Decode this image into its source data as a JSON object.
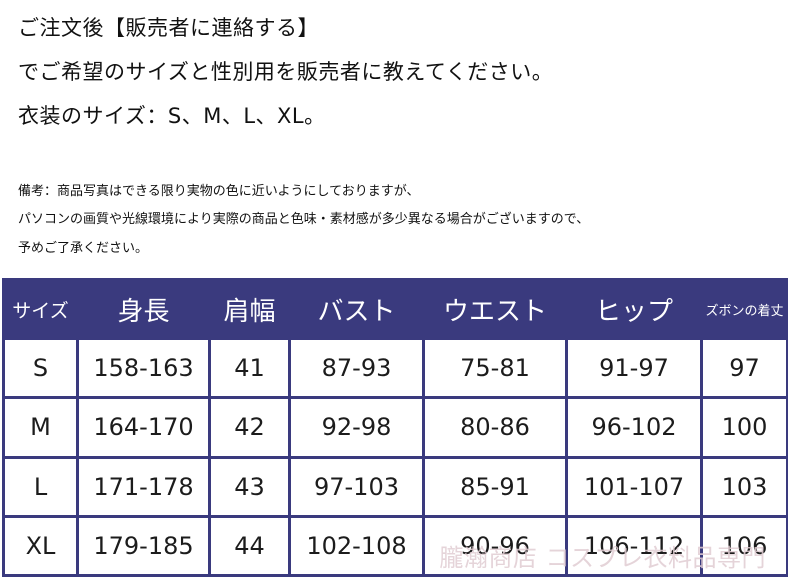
{
  "instructions": {
    "line1": "ご注文後【販売者に連絡する】",
    "line2": "でご希望のサイズと性別用を販売者に教えてください。",
    "line3": "衣装のサイズ：S、M、L、XL。"
  },
  "note": {
    "line1": "備考：商品写真はできる限り実物の色に近いようにしておりますが、",
    "line2": "パソコンの画質や光線環境により実際の商品と色味・素材感が多少異なる場合がございますので、",
    "line3": "予めご了承ください。"
  },
  "size_table": {
    "headers": [
      "サイズ",
      "身長",
      "肩幅",
      "バスト",
      "ウエスト",
      "ヒップ",
      "ズボンの着丈"
    ],
    "rows": [
      [
        "S",
        "158-163",
        "41",
        "87-93",
        "75-81",
        "91-97",
        "97"
      ],
      [
        "M",
        "164-170",
        "42",
        "92-98",
        "80-86",
        "96-102",
        "100"
      ],
      [
        "L",
        "171-178",
        "43",
        "97-103",
        "85-91",
        "101-107",
        "103"
      ],
      [
        "XL",
        "179-185",
        "44",
        "102-108",
        "90-96",
        "106-112",
        "106"
      ]
    ]
  },
  "watermark": "朧瀚商店 コスプレ衣料品専門",
  "colors": {
    "header_bg": "#3a3a7e",
    "text": "#111111",
    "watermark": "#e1cdd2"
  }
}
